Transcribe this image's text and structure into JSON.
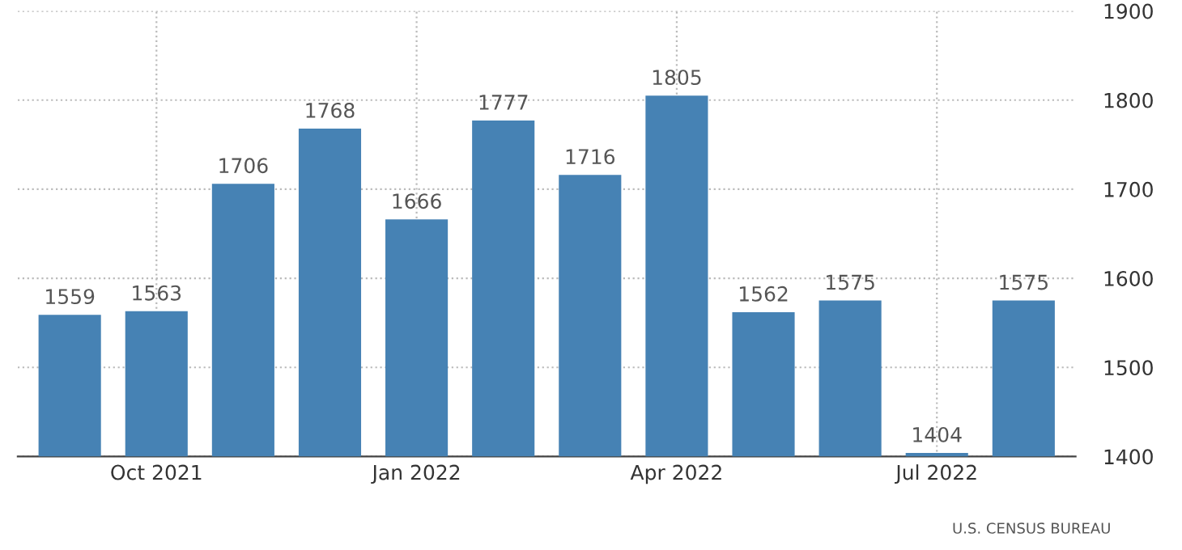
{
  "chart_data": {
    "type": "bar",
    "categories": [
      null,
      "Oct 2021",
      null,
      null,
      "Jan 2022",
      null,
      null,
      "Apr 2022",
      null,
      null,
      "Jul 2022",
      null
    ],
    "values": [
      1559,
      1563,
      1706,
      1768,
      1666,
      1777,
      1716,
      1805,
      1562,
      1575,
      1404,
      1575
    ],
    "color": "#4682b4",
    "ylim": [
      1400,
      1900
    ],
    "yticks": [
      1400,
      1500,
      1600,
      1700,
      1800,
      1900
    ],
    "grid": true,
    "data_labels": true,
    "annotations": [
      "U.S. CENSUS BUREAU"
    ]
  }
}
